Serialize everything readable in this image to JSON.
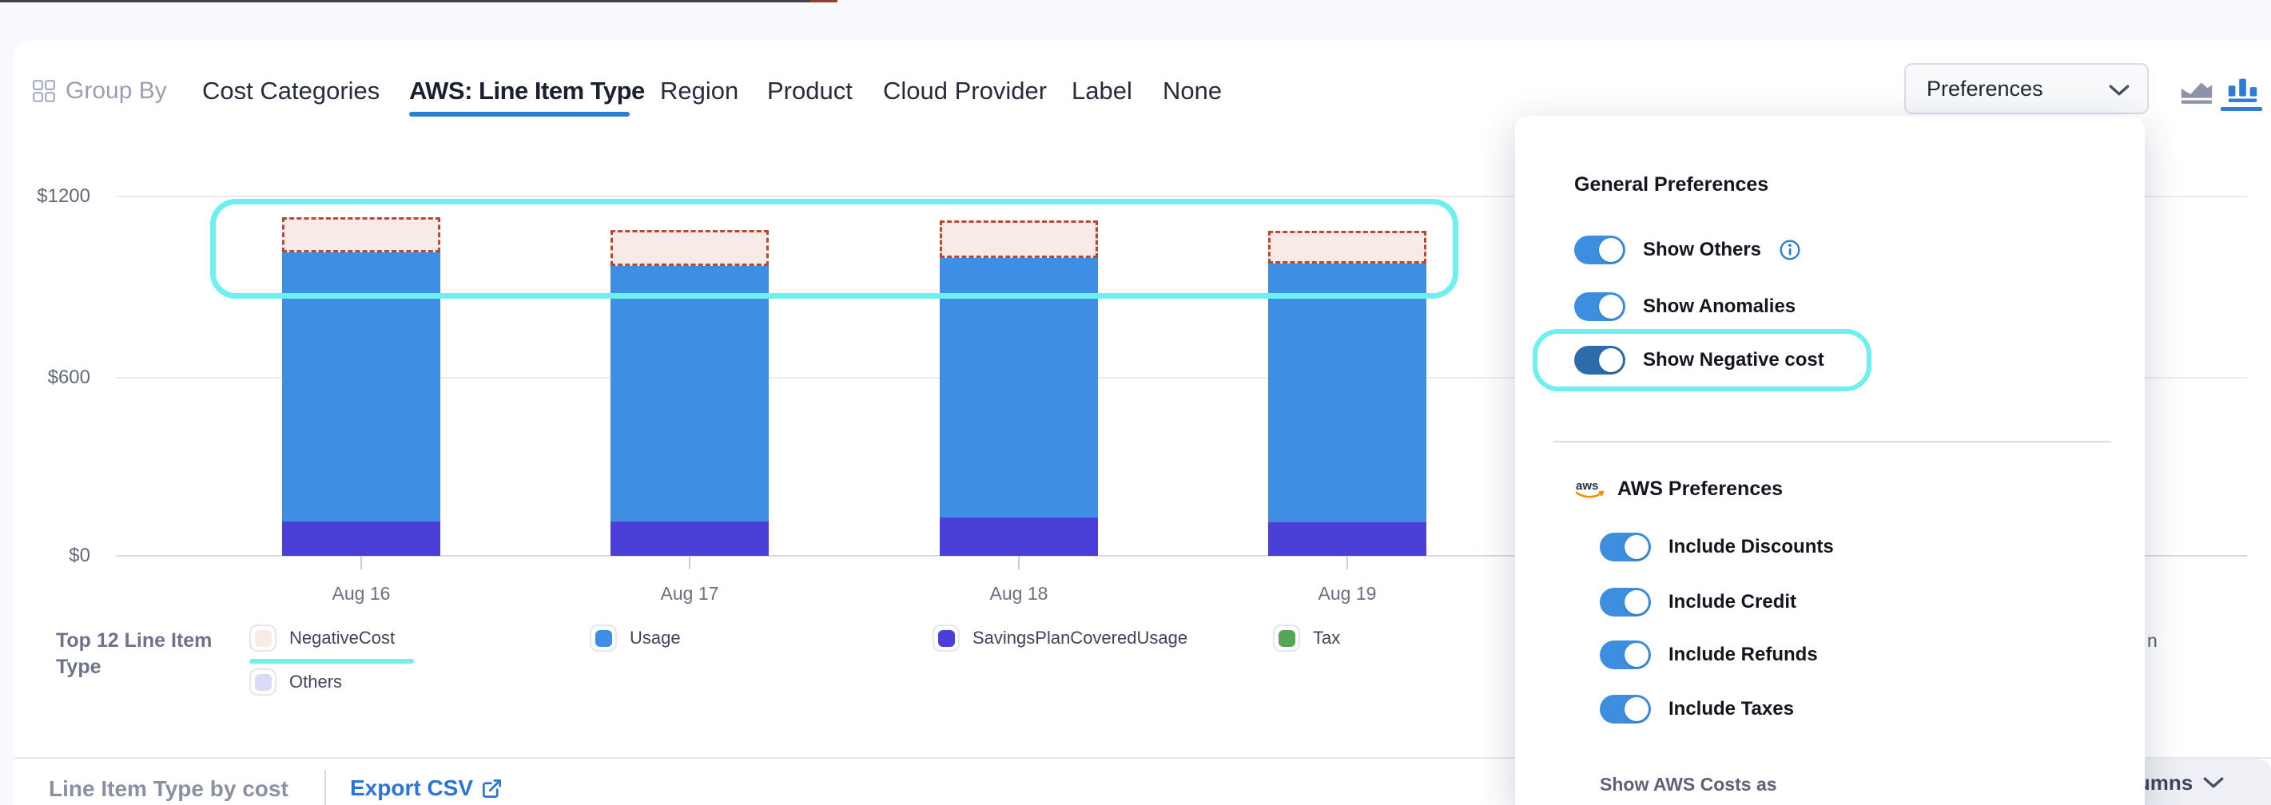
{
  "colors": {
    "accent_blue": "#2e7cd4",
    "usage_blue": "#3e8fe3",
    "savings_plan_purple": "#4b3fd9",
    "negative_fill": "#f8ebe7",
    "negative_border": "#bb4733",
    "tax_green": "#57a557",
    "others_lavender": "#d9dbf8",
    "annotation_cyan": "#6eeff0",
    "toggle_on": "#3d8edf",
    "toggle_on_dark": "#2d6ca8"
  },
  "toolbar": {
    "group_by_label": "Group By",
    "tabs": [
      "Cost Categories",
      "AWS: Line Item Type",
      "Region",
      "Product",
      "Cloud Provider",
      "Label",
      "None"
    ],
    "active_tab": "AWS: Line Item Type",
    "preferences_label": "Preferences"
  },
  "chart_data": {
    "type": "bar",
    "stacked": true,
    "categories": [
      "Aug 16",
      "Aug 17",
      "Aug 18",
      "Aug 19"
    ],
    "series": [
      {
        "name": "SavingsPlanCoveredUsage",
        "color": "#4b3fd9",
        "values": [
          115,
          115,
          130,
          113
        ]
      },
      {
        "name": "Usage",
        "color": "#3e8fe3",
        "values": [
          907,
          861,
          874,
          872
        ]
      },
      {
        "name": "NegativeCost",
        "color": "#f8ebe7",
        "border_color": "#bb4733",
        "style": "dashed-outline",
        "values": [
          120,
          122,
          127,
          110
        ]
      },
      {
        "name": "Tax",
        "color": "#57a557",
        "values": [
          0,
          0,
          0,
          0
        ]
      },
      {
        "name": "Others",
        "color": "#d9dbf8",
        "values": [
          0,
          0,
          0,
          0
        ]
      }
    ],
    "ylim": [
      0,
      1200
    ],
    "ytick_labels": [
      "$0",
      "$600",
      "$1200"
    ],
    "grid": true,
    "legend_position": "bottom"
  },
  "legend": {
    "title": "Top 12 Line Item Type",
    "items": [
      {
        "label": "NegativeCost",
        "swatch": "#f8ebe7",
        "highlighted": true
      },
      {
        "label": "Usage",
        "swatch": "#3e8fe3"
      },
      {
        "label": "SavingsPlanCoveredUsage",
        "swatch": "#4b3fd9"
      },
      {
        "label": "Tax",
        "swatch": "#57a557"
      },
      {
        "label": "Others",
        "swatch": "#d9dbf8"
      }
    ],
    "hidden_item_fragment": "n"
  },
  "panel": {
    "general_title": "General Preferences",
    "general_toggles": [
      {
        "label": "Show Others",
        "on": true,
        "info": true
      },
      {
        "label": "Show Anomalies",
        "on": true
      },
      {
        "label": "Show Negative cost",
        "on": true,
        "highlighted": true
      }
    ],
    "aws_title": "AWS Preferences",
    "aws_logo": "aws",
    "aws_toggles": [
      {
        "label": "Include Discounts",
        "on": true
      },
      {
        "label": "Include Credit",
        "on": true
      },
      {
        "label": "Include Refunds",
        "on": true
      },
      {
        "label": "Include Taxes",
        "on": true
      }
    ],
    "footer_label": "Show AWS Costs as"
  },
  "footer": {
    "section_title": "Line Item Type by cost",
    "export_label": "Export CSV",
    "columns_label": "Columns"
  }
}
